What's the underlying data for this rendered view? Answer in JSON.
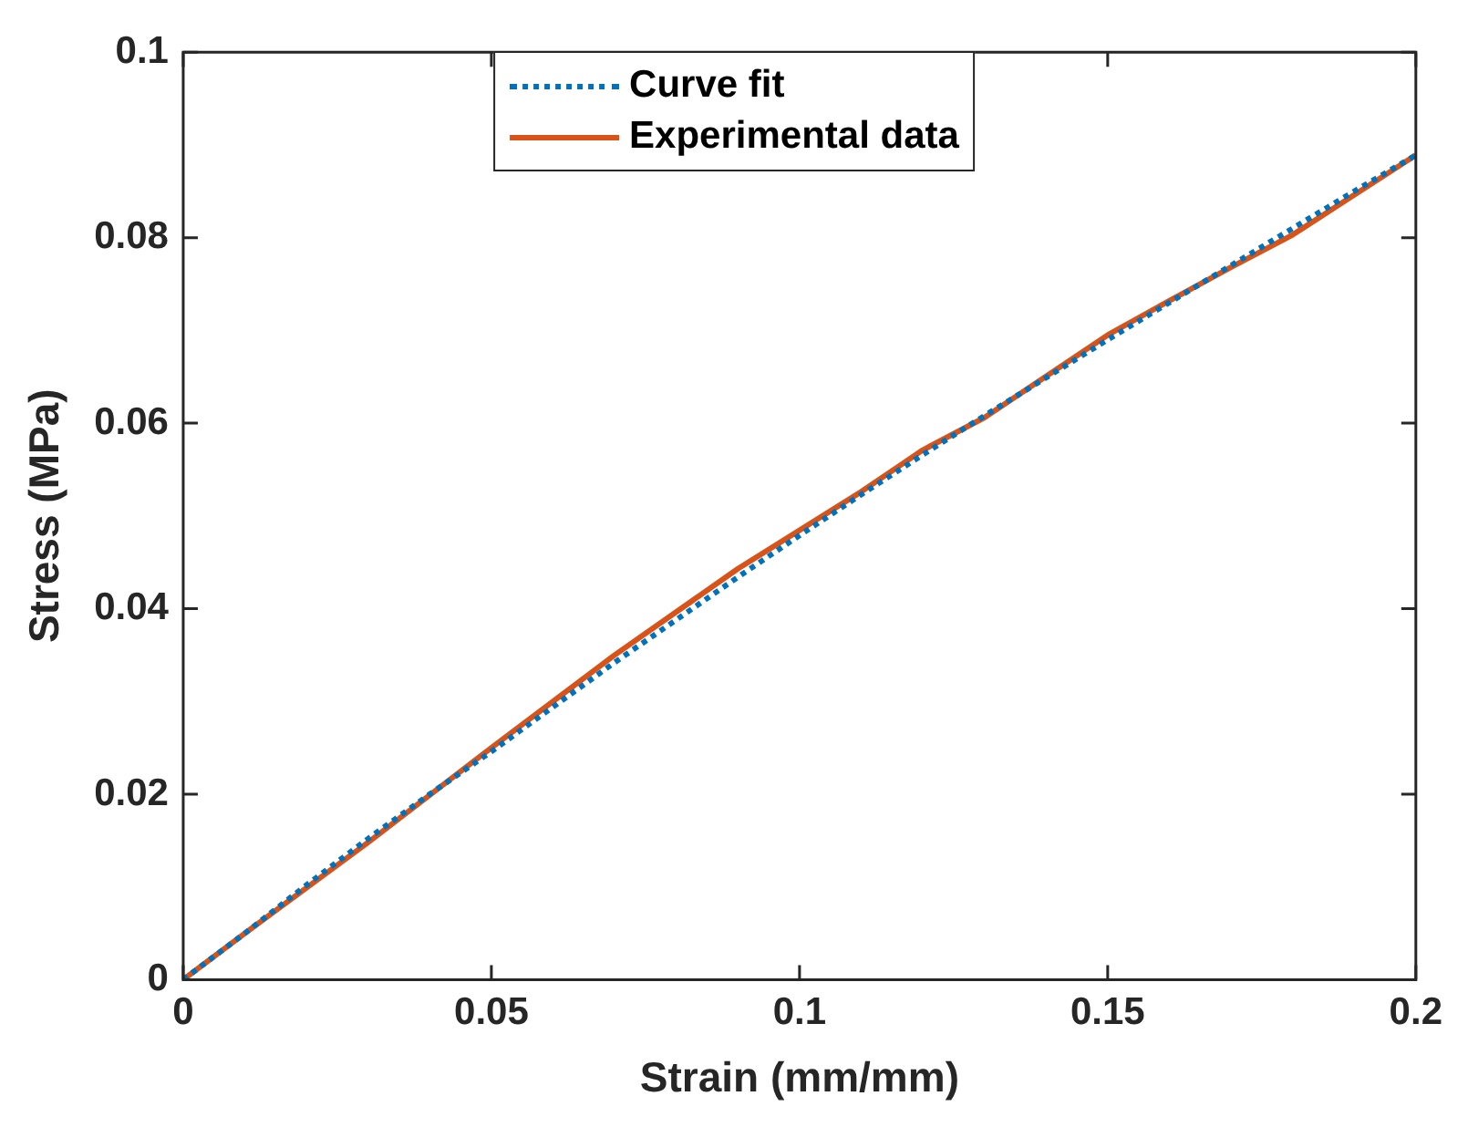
{
  "chart_data": {
    "type": "line",
    "xlabel": "Strain (mm/mm)",
    "ylabel": "Stress (MPa)",
    "xlim": [
      0,
      0.2
    ],
    "xticks": [
      0,
      0.05,
      0.1,
      0.15,
      0.2
    ],
    "ylim": [
      0,
      0.1
    ],
    "yticks": [
      0,
      0.02,
      0.04,
      0.06,
      0.08,
      0.1
    ],
    "grid": false,
    "legend": "top",
    "marker": "none",
    "series": [
      {
        "name": "Curve fit",
        "color": "#0072bd",
        "line_style": "dotted",
        "x": [
          0,
          0.01,
          0.02,
          0.03,
          0.04,
          0.05,
          0.06,
          0.07,
          0.08,
          0.09,
          0.1,
          0.11,
          0.12,
          0.13,
          0.14,
          0.15,
          0.16,
          0.17,
          0.18,
          0.19,
          0.2
        ],
        "values": [
          0,
          0.005,
          0.0102,
          0.0152,
          0.02,
          0.0246,
          0.0294,
          0.0342,
          0.0388,
          0.0434,
          0.0479,
          0.0523,
          0.0566,
          0.0608,
          0.0649,
          0.069,
          0.073,
          0.077,
          0.081,
          0.085,
          0.0889
        ]
      },
      {
        "name": "Experimental data",
        "color": "#d95319",
        "line_style": "solid",
        "x": [
          0,
          0.01,
          0.03,
          0.05,
          0.07,
          0.09,
          0.11,
          0.12,
          0.13,
          0.15,
          0.16,
          0.17,
          0.18,
          0.19,
          0.2
        ],
        "values": [
          0,
          0.005,
          0.0148,
          0.025,
          0.035,
          0.0443,
          0.0526,
          0.0571,
          0.0606,
          0.0695,
          0.0732,
          0.0768,
          0.0803,
          0.0846,
          0.0889
        ]
      }
    ]
  }
}
